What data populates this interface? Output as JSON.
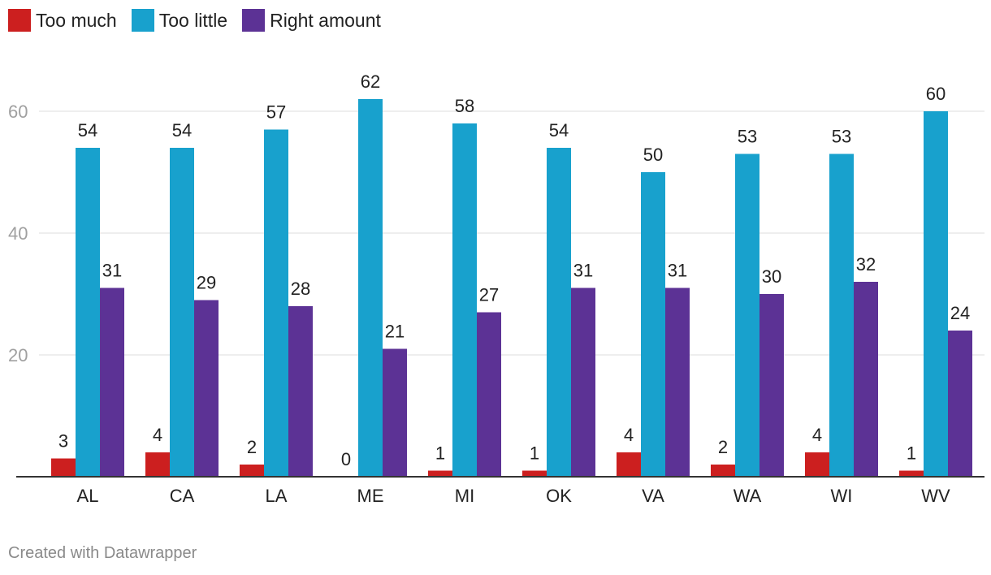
{
  "legend": {
    "items": [
      {
        "label": "Too much",
        "color": "#cc1f1f"
      },
      {
        "label": "Too little",
        "color": "#18a1cd"
      },
      {
        "label": "Right amount",
        "color": "#5c3295"
      }
    ]
  },
  "chart_data": {
    "type": "bar",
    "categories": [
      "AL",
      "CA",
      "LA",
      "ME",
      "MI",
      "OK",
      "VA",
      "WA",
      "WI",
      "WV"
    ],
    "series": [
      {
        "name": "Too much",
        "color": "#cc1f1f",
        "values": [
          3,
          4,
          2,
          0,
          1,
          1,
          4,
          2,
          4,
          1
        ]
      },
      {
        "name": "Too little",
        "color": "#18a1cd",
        "values": [
          54,
          54,
          57,
          62,
          58,
          54,
          50,
          53,
          53,
          60
        ]
      },
      {
        "name": "Right amount",
        "color": "#5c3295",
        "values": [
          31,
          29,
          28,
          21,
          27,
          31,
          31,
          30,
          32,
          24
        ]
      }
    ],
    "yticks": [
      20,
      40,
      60
    ],
    "ylim": [
      0,
      62
    ],
    "grid": true,
    "data_labels": true,
    "legend_position": "top-left"
  },
  "footer": {
    "credit": "Created with Datawrapper"
  }
}
